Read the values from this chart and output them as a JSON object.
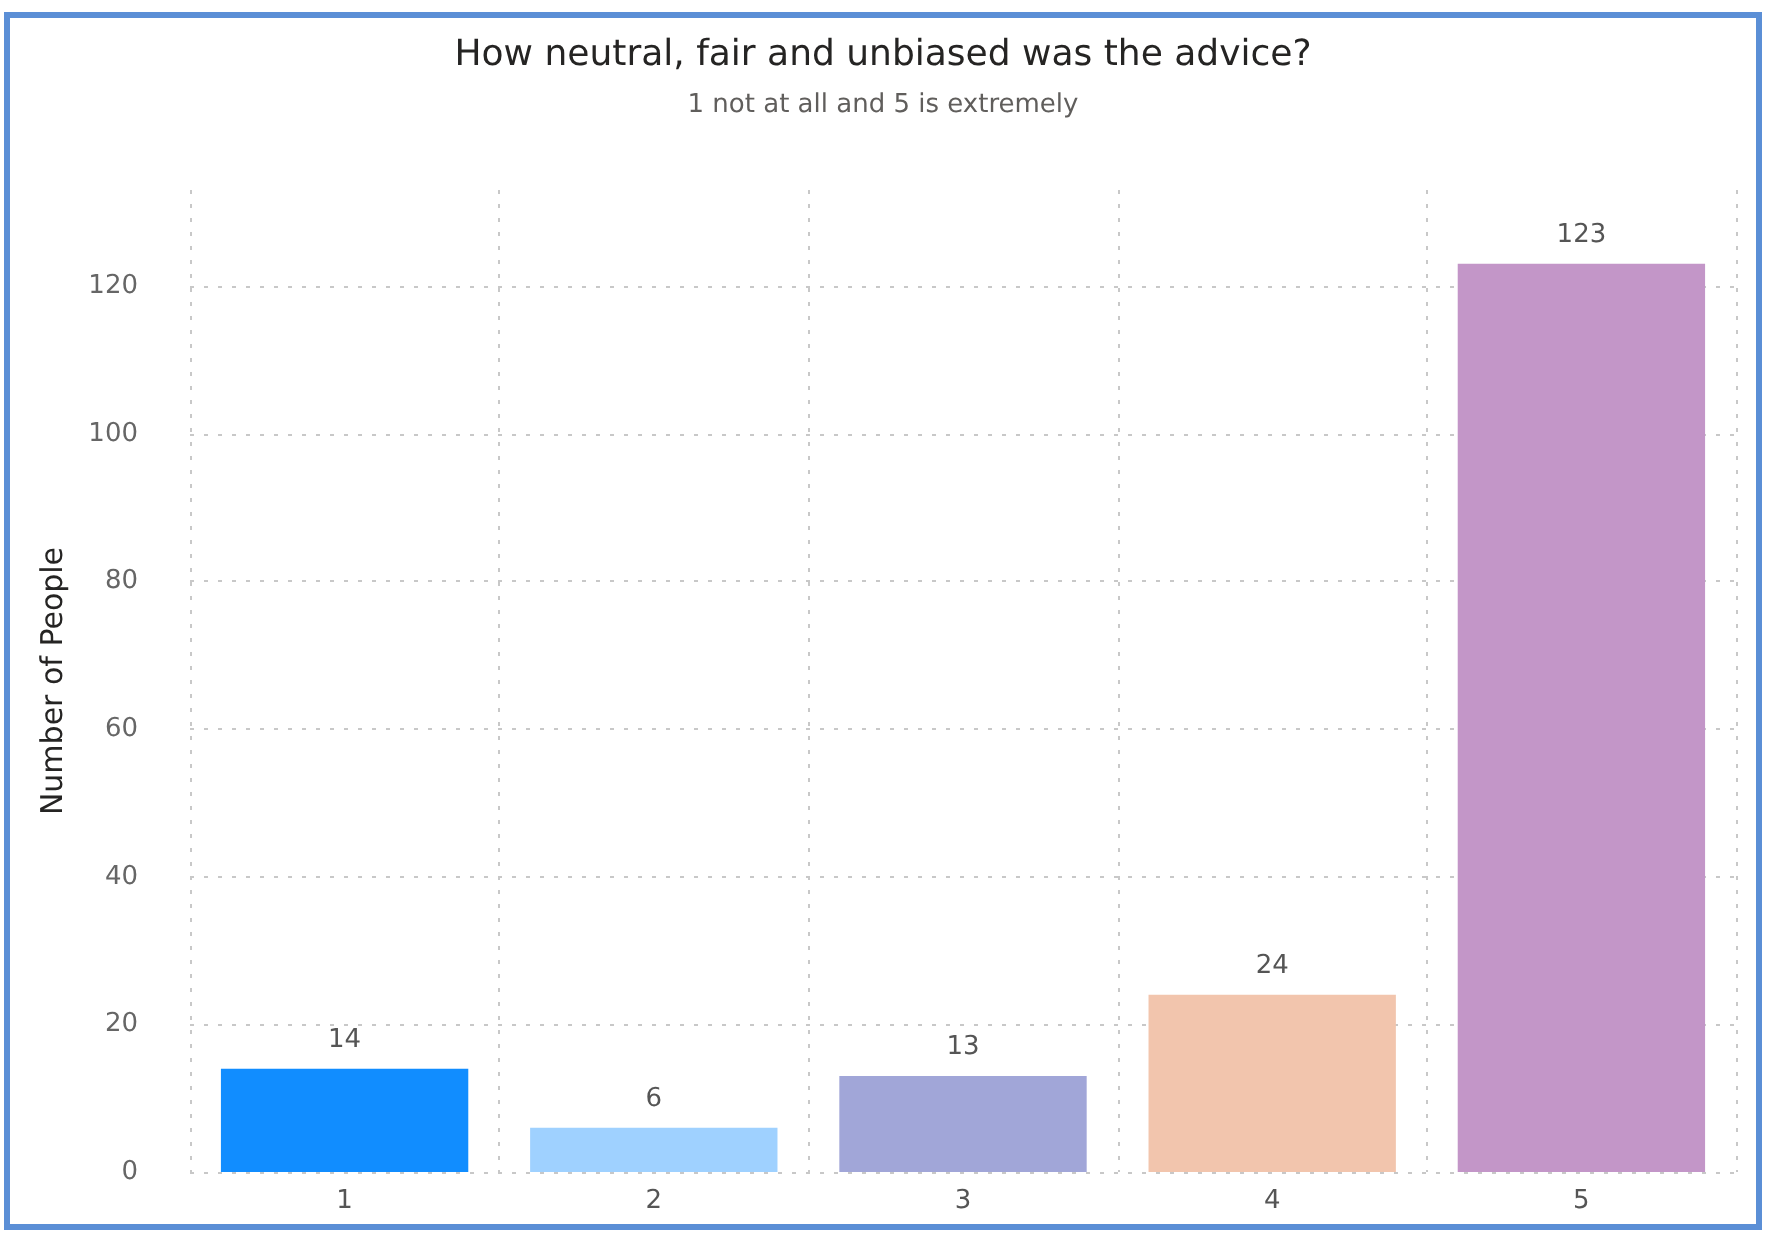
{
  "chart_data": {
    "type": "bar",
    "title": "How neutral, fair and unbiased was the advice?",
    "subtitle": "1 not at all and 5 is extremely",
    "ylabel": "Number of People",
    "categories": [
      "1",
      "2",
      "3",
      "4",
      "5"
    ],
    "values": [
      14,
      6,
      13,
      24,
      123
    ],
    "colors": [
      "#118dff",
      "#9fd1ff",
      "#a1a6d8",
      "#f2c5ad",
      "#c396c8"
    ],
    "ylim": [
      0,
      133
    ],
    "yticks": [
      0,
      20,
      40,
      60,
      80,
      100,
      120
    ],
    "grid": true,
    "data_labels": true
  }
}
